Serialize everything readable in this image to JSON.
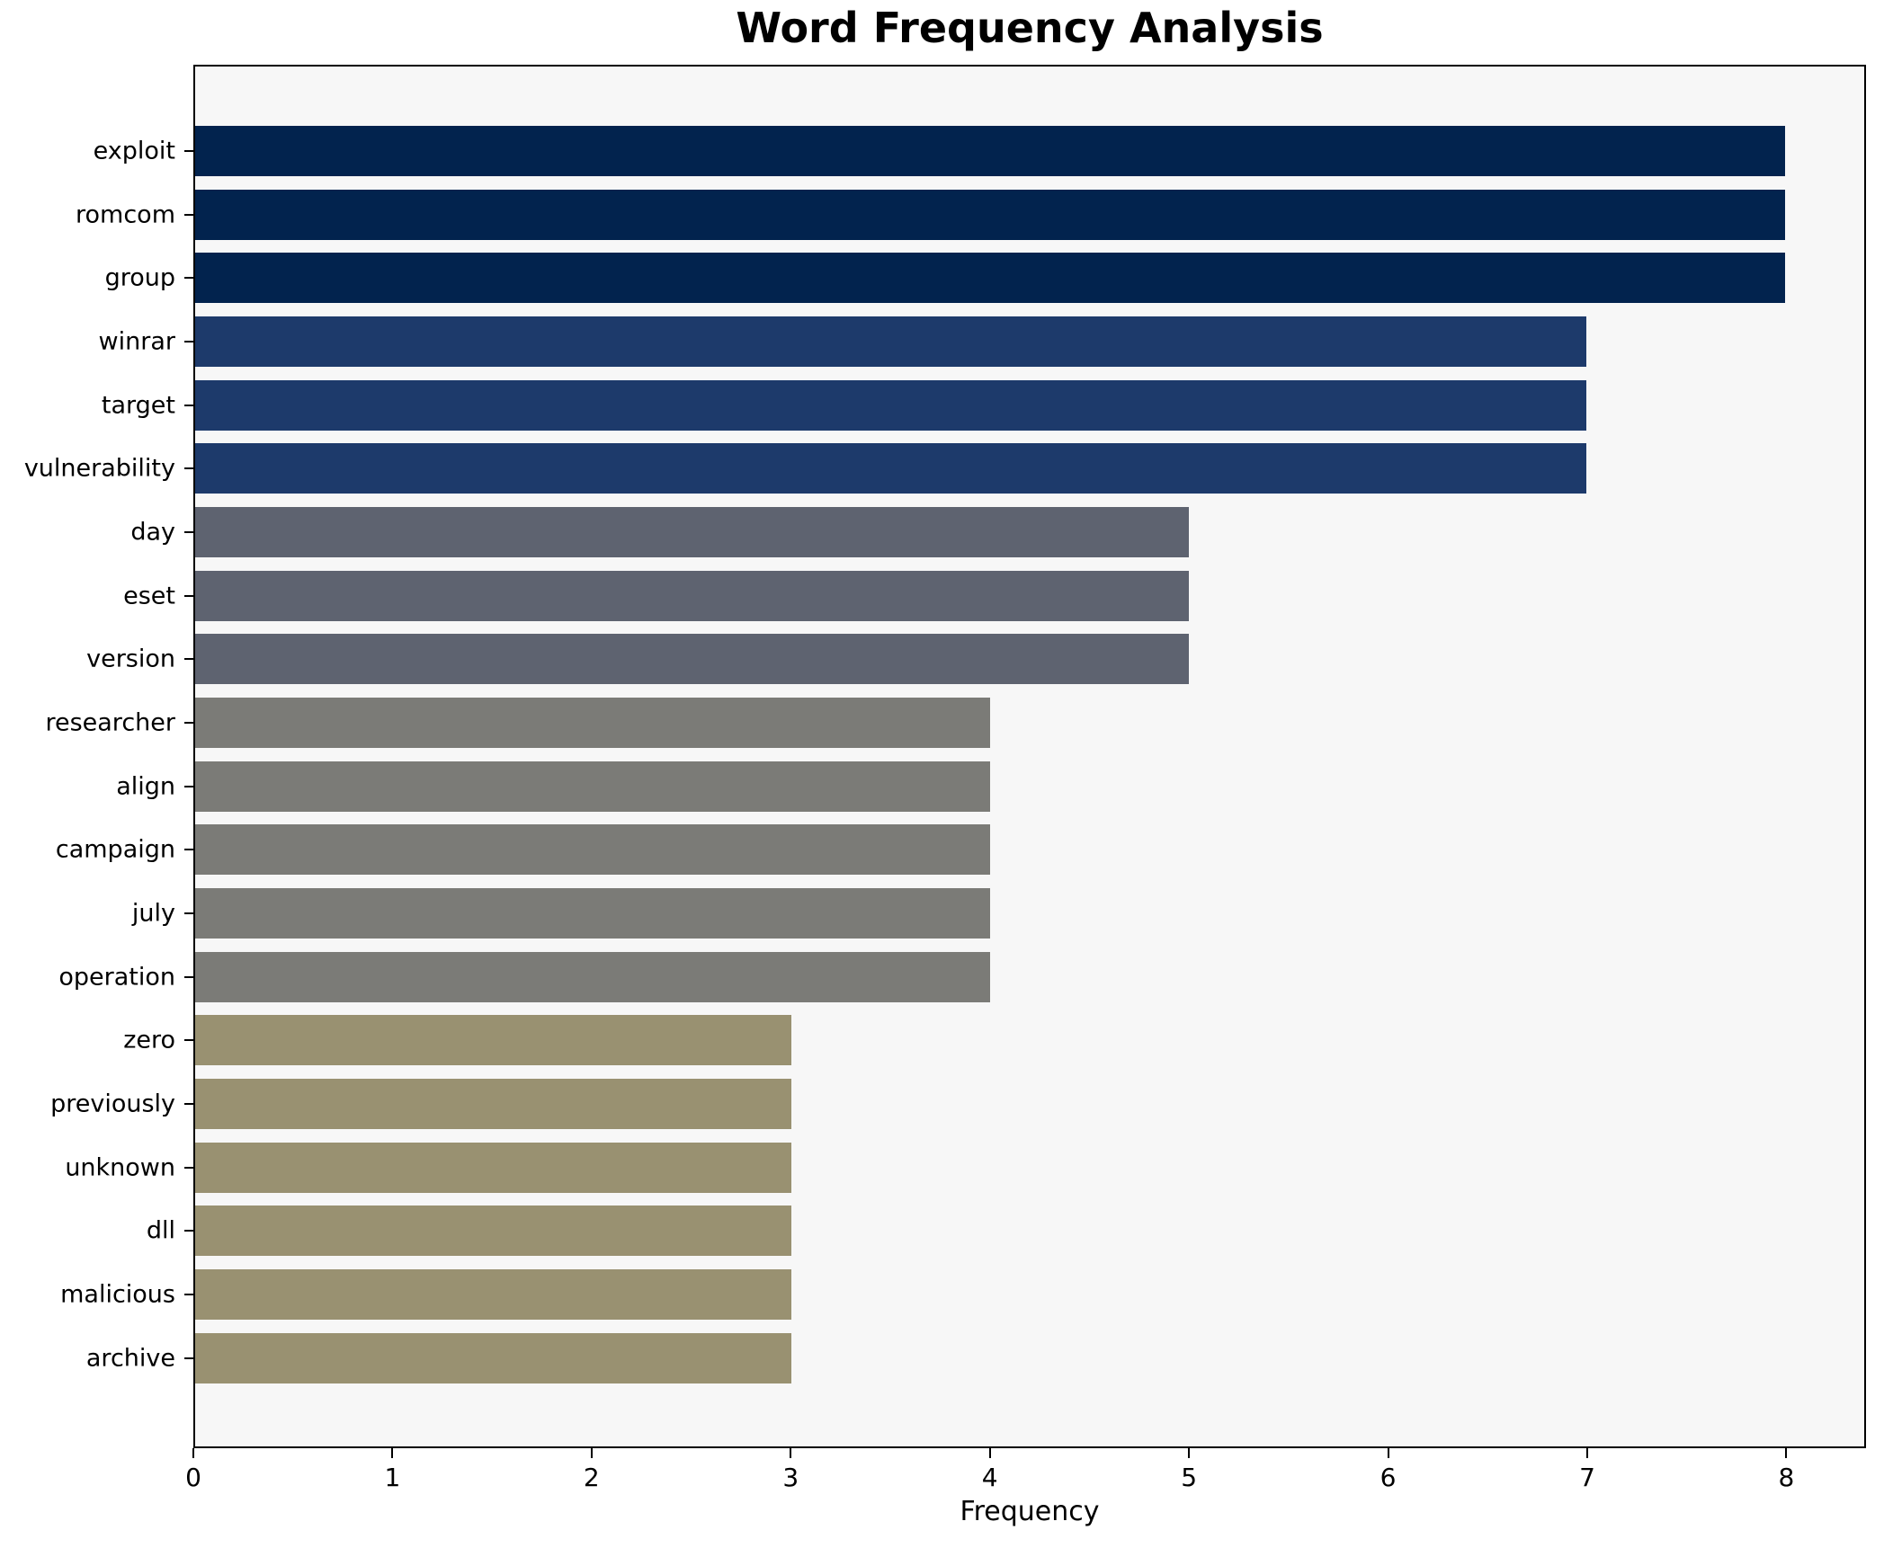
{
  "page": {
    "title": "Word Frequency Analysis"
  },
  "chart_data": {
    "type": "bar",
    "orientation": "horizontal",
    "title": "Word Frequency Analysis",
    "xlabel": "Frequency",
    "ylabel": "",
    "categories": [
      "exploit",
      "romcom",
      "group",
      "winrar",
      "target",
      "vulnerability",
      "day",
      "eset",
      "version",
      "researcher",
      "align",
      "campaign",
      "july",
      "operation",
      "zero",
      "previously",
      "unknown",
      "dll",
      "malicious",
      "archive"
    ],
    "values": [
      8,
      8,
      8,
      7,
      7,
      7,
      5,
      5,
      5,
      4,
      4,
      4,
      4,
      4,
      3,
      3,
      3,
      3,
      3,
      3
    ],
    "bar_colors": [
      "#02234e",
      "#02234e",
      "#02234e",
      "#1d3a6b",
      "#1d3a6b",
      "#1d3a6b",
      "#5e6370",
      "#5e6370",
      "#5e6370",
      "#7b7b77",
      "#7b7b77",
      "#7b7b77",
      "#7b7b77",
      "#7b7b77",
      "#999171",
      "#999171",
      "#999171",
      "#999171",
      "#999171",
      "#999171"
    ],
    "x_ticks": [
      0,
      1,
      2,
      3,
      4,
      5,
      6,
      7,
      8
    ],
    "xlim": [
      0,
      8.4
    ],
    "grid": false,
    "legend": false,
    "plot_background": "#f7f7f7",
    "figure_background": "#ffffff",
    "spine_color": "#000000",
    "bar_height_fraction": 0.8
  }
}
